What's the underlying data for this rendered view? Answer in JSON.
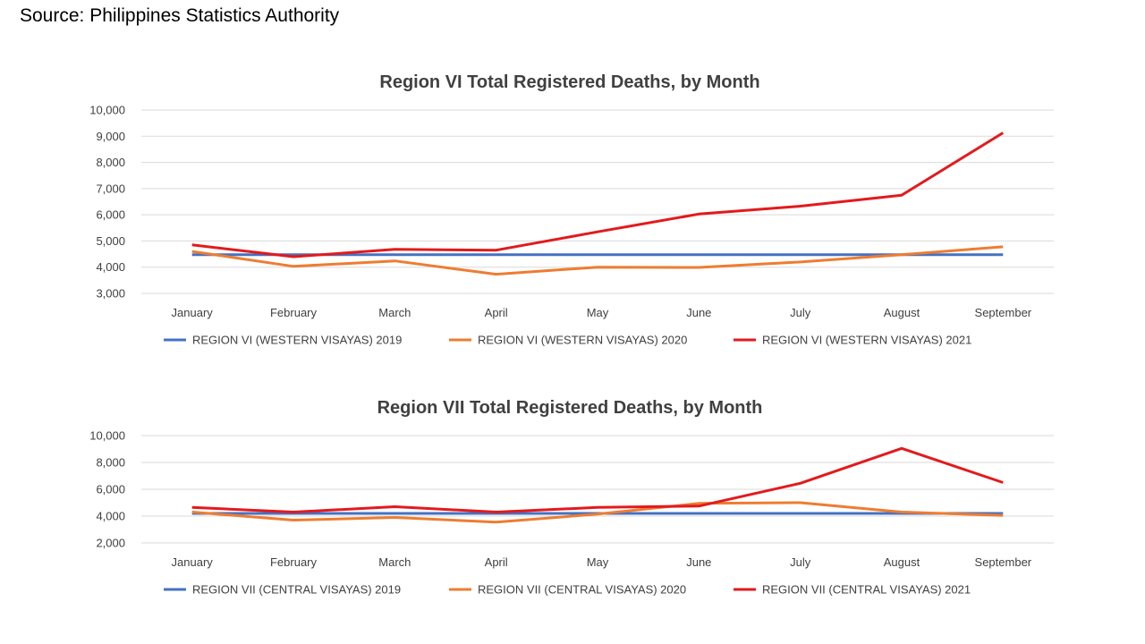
{
  "source_text": "Source:  Philippines Statistics Authority",
  "colors": {
    "series_2019": "#4472c4",
    "series_2020": "#ed7d31",
    "series_2021": "#e31a1c",
    "gridline": "#d9d9d9",
    "text": "#404040"
  },
  "chart_data": [
    {
      "type": "line",
      "title": "Region VI Total Registered Deaths, by Month",
      "categories": [
        "January",
        "February",
        "March",
        "April",
        "May",
        "June",
        "July",
        "August",
        "September"
      ],
      "ylim": [
        3000,
        10000
      ],
      "yticks": [
        3000,
        4000,
        5000,
        6000,
        7000,
        8000,
        9000,
        10000
      ],
      "ytick_labels": [
        "3,000",
        "4,000",
        "5,000",
        "6,000",
        "7,000",
        "8,000",
        "9,000",
        "10,000"
      ],
      "grid": true,
      "legend_position": "bottom",
      "series": [
        {
          "name": "REGION VI (WESTERN VISAYAS) 2019",
          "color": "#4472c4",
          "values": [
            4480,
            4480,
            4480,
            4480,
            4480,
            4480,
            4480,
            4480,
            4480
          ]
        },
        {
          "name": "REGION VI (WESTERN VISAYAS) 2020",
          "color": "#ed7d31",
          "values": [
            4600,
            4030,
            4240,
            3730,
            4000,
            3990,
            4200,
            4480,
            4780
          ]
        },
        {
          "name": "REGION VI (WESTERN VISAYAS) 2021",
          "color": "#e31a1c",
          "values": [
            4850,
            4400,
            4680,
            4650,
            5350,
            6030,
            6330,
            6750,
            9130
          ]
        }
      ]
    },
    {
      "type": "line",
      "title": "Region VII Total Registered Deaths, by Month",
      "categories": [
        "January",
        "February",
        "March",
        "April",
        "May",
        "June",
        "July",
        "August",
        "September"
      ],
      "ylim": [
        2000,
        10000
      ],
      "yticks": [
        2000,
        4000,
        6000,
        8000,
        10000
      ],
      "ytick_labels": [
        "2,000",
        "4,000",
        "6,000",
        "8,000",
        "10,000"
      ],
      "grid": true,
      "legend_position": "bottom",
      "series": [
        {
          "name": "REGION VII (CENTRAL VISAYAS) 2019",
          "color": "#4472c4",
          "values": [
            4200,
            4200,
            4200,
            4200,
            4200,
            4200,
            4200,
            4200,
            4200
          ]
        },
        {
          "name": "REGION VII (CENTRAL VISAYAS) 2020",
          "color": "#ed7d31",
          "values": [
            4300,
            3700,
            3900,
            3550,
            4150,
            4950,
            5000,
            4300,
            4050
          ]
        },
        {
          "name": "REGION VII (CENTRAL VISAYAS) 2021",
          "color": "#e31a1c",
          "values": [
            4650,
            4300,
            4700,
            4300,
            4650,
            4750,
            6450,
            9050,
            6500
          ]
        }
      ]
    }
  ]
}
